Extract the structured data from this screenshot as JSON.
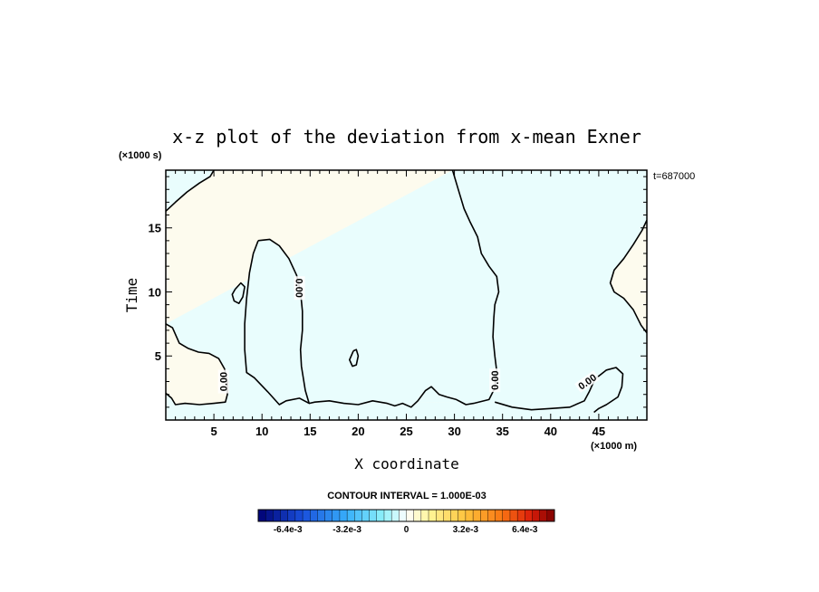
{
  "chart_data": {
    "type": "heatmap",
    "title": "x-z plot of the deviation from x-mean Exner",
    "xlabel": "X coordinate",
    "ylabel": "Time",
    "x_unit": "(×1000 m)",
    "y_unit": "(×1000 s)",
    "time_label": "t=687000",
    "xlim": [
      0,
      50
    ],
    "ylim": [
      0,
      19.5
    ],
    "x_ticks": [
      5,
      10,
      15,
      20,
      25,
      30,
      35,
      40,
      45
    ],
    "y_ticks": [
      5,
      10,
      15
    ],
    "contour_interval_text": "CONTOUR INTERVAL = 1.000E-03",
    "colorbar": {
      "range": [
        -0.008,
        0.008
      ],
      "n_bins": 40,
      "tick_values": [
        -0.0064,
        -0.0032,
        0,
        0.0032,
        0.0064
      ],
      "tick_labels": [
        "-6.4e-3",
        "-3.2e-3",
        "0",
        "3.2e-3",
        "6.4e-3"
      ]
    },
    "regions": [
      {
        "name": "positive",
        "color": "#fdfbee"
      },
      {
        "name": "negative",
        "color": "#e9fdfd"
      }
    ],
    "contour_labels": [
      {
        "text": "0.00",
        "x": 13.9,
        "y": 10.3,
        "angle": 90
      },
      {
        "text": "0.00",
        "x": 6.0,
        "y": 3.0,
        "angle": -90
      },
      {
        "text": "0.00",
        "x": 34.2,
        "y": 3.1,
        "angle": -90
      },
      {
        "text": "0.00",
        "x": 43.8,
        "y": 3.0,
        "angle": -35
      }
    ],
    "contours": [
      {
        "name": "upper-left-edge",
        "points": [
          [
            0,
            16.3
          ],
          [
            1.0,
            17.0
          ],
          [
            2.2,
            17.8
          ],
          [
            3.5,
            18.5
          ],
          [
            4.6,
            19.0
          ],
          [
            5.0,
            19.5
          ]
        ]
      },
      {
        "name": "center-left-lens",
        "points": [
          [
            9.6,
            14.0
          ],
          [
            10.8,
            14.1
          ],
          [
            11.8,
            13.6
          ],
          [
            12.8,
            12.6
          ],
          [
            13.6,
            11.3
          ],
          [
            14.0,
            10.0
          ],
          [
            14.2,
            8.5
          ],
          [
            14.2,
            7.0
          ],
          [
            14.0,
            5.5
          ],
          [
            14.1,
            4.2
          ],
          [
            14.5,
            2.3
          ],
          [
            14.9,
            1.3
          ],
          [
            13.9,
            1.7
          ],
          [
            12.5,
            1.5
          ],
          [
            11.8,
            1.2
          ],
          [
            10.6,
            2.2
          ],
          [
            9.2,
            3.3
          ],
          [
            8.4,
            3.7
          ],
          [
            8.2,
            5.5
          ],
          [
            8.2,
            7.5
          ],
          [
            8.4,
            9.5
          ],
          [
            8.7,
            11.5
          ],
          [
            9.1,
            13.0
          ],
          [
            9.6,
            14.0
          ]
        ]
      },
      {
        "name": "small-island",
        "points": [
          [
            7.2,
            10.2
          ],
          [
            7.8,
            10.7
          ],
          [
            8.2,
            10.4
          ],
          [
            8.0,
            9.6
          ],
          [
            7.6,
            9.1
          ],
          [
            7.1,
            9.3
          ],
          [
            6.9,
            9.8
          ],
          [
            7.2,
            10.2
          ]
        ]
      },
      {
        "name": "mid-island",
        "points": [
          [
            19.5,
            5.4
          ],
          [
            19.8,
            5.5
          ],
          [
            20.0,
            5.0
          ],
          [
            19.8,
            4.3
          ],
          [
            19.4,
            4.2
          ],
          [
            19.1,
            4.7
          ],
          [
            19.5,
            5.4
          ]
        ]
      },
      {
        "name": "left-bottom",
        "points": [
          [
            0,
            7.5
          ],
          [
            0.7,
            7.2
          ],
          [
            1.4,
            6.0
          ],
          [
            2.3,
            5.6
          ],
          [
            3.4,
            5.3
          ],
          [
            4.5,
            5.2
          ],
          [
            5.5,
            4.8
          ],
          [
            6.1,
            4.0
          ],
          [
            6.4,
            3.0
          ],
          [
            6.4,
            2.0
          ],
          [
            6.2,
            1.4
          ],
          [
            5.0,
            1.3
          ],
          [
            3.5,
            1.2
          ],
          [
            2.0,
            1.3
          ],
          [
            1.0,
            1.2
          ],
          [
            0.6,
            1.7
          ],
          [
            0,
            2.1
          ]
        ]
      },
      {
        "name": "center-band",
        "points": [
          [
            29.8,
            19.5
          ],
          [
            30.4,
            18.0
          ],
          [
            31.0,
            16.5
          ],
          [
            31.6,
            15.5
          ],
          [
            32.4,
            14.3
          ],
          [
            32.8,
            13.0
          ],
          [
            33.6,
            12.0
          ],
          [
            34.4,
            11.2
          ],
          [
            34.6,
            10.0
          ],
          [
            34.2,
            9.0
          ],
          [
            34.1,
            8.0
          ],
          [
            34.0,
            6.5
          ],
          [
            34.2,
            5.0
          ],
          [
            34.4,
            3.8
          ],
          [
            34.2,
            2.5
          ],
          [
            33.6,
            1.6
          ],
          [
            32.0,
            1.3
          ],
          [
            31.2,
            1.2
          ],
          [
            30.2,
            1.6
          ],
          [
            29.2,
            1.8
          ],
          [
            28.4,
            2.0
          ],
          [
            27.6,
            2.6
          ],
          [
            27.0,
            2.3
          ],
          [
            26.2,
            1.5
          ],
          [
            25.5,
            1.0
          ],
          [
            24.6,
            1.3
          ],
          [
            23.8,
            1.1
          ],
          [
            23.0,
            1.3
          ],
          [
            21.5,
            1.5
          ],
          [
            20.0,
            1.2
          ],
          [
            18.5,
            1.3
          ],
          [
            17.0,
            1.5
          ],
          [
            15.5,
            1.4
          ],
          [
            14.9,
            1.3
          ]
        ]
      },
      {
        "name": "lower-right-lobe",
        "points": [
          [
            34.2,
            1.4
          ],
          [
            36.0,
            1.0
          ],
          [
            38.0,
            0.8
          ],
          [
            40.0,
            0.9
          ],
          [
            42.0,
            1.0
          ],
          [
            43.5,
            1.5
          ],
          [
            44.0,
            2.2
          ],
          [
            44.6,
            3.2
          ],
          [
            45.8,
            3.9
          ],
          [
            46.8,
            4.1
          ],
          [
            47.5,
            3.6
          ],
          [
            47.4,
            2.6
          ],
          [
            47.0,
            1.8
          ],
          [
            45.8,
            1.2
          ],
          [
            45.0,
            0.9
          ],
          [
            44.5,
            0.6
          ]
        ]
      },
      {
        "name": "right-edge",
        "points": [
          [
            50,
            15.6
          ],
          [
            49.5,
            14.8
          ],
          [
            48.6,
            13.7
          ],
          [
            47.6,
            12.6
          ],
          [
            46.6,
            11.7
          ],
          [
            46.2,
            10.7
          ],
          [
            46.6,
            10.0
          ],
          [
            47.6,
            9.5
          ],
          [
            48.6,
            8.6
          ],
          [
            49.4,
            7.4
          ],
          [
            50,
            6.8
          ]
        ]
      }
    ]
  }
}
